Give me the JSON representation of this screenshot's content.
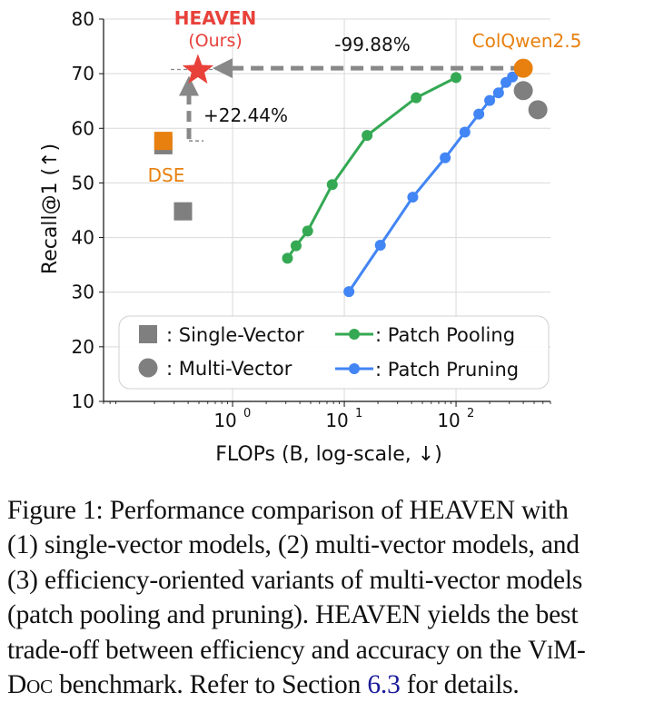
{
  "chart_data": {
    "type": "scatter",
    "title": "",
    "xlabel": "FLOPs (B, log-scale, ↓)",
    "ylabel": "Recall@1 (↑)",
    "xscale": "log",
    "xlim": [
      0.07,
      700
    ],
    "ylim": [
      10,
      80
    ],
    "yticks": [
      10,
      20,
      30,
      40,
      50,
      60,
      70,
      80
    ],
    "xticks": [
      {
        "value": 1,
        "base": "10",
        "exp": "0"
      },
      {
        "value": 10,
        "base": "10",
        "exp": "1"
      },
      {
        "value": 100,
        "base": "10",
        "exp": "2"
      }
    ],
    "grid": true,
    "legend_position": "bottom",
    "series": [
      {
        "name": "Patch Pooling",
        "marker": "circle",
        "line": true,
        "color": "#34a853",
        "x": [
          3.1,
          3.7,
          4.7,
          7.8,
          16,
          44,
          100
        ],
        "y": [
          36.2,
          38.5,
          41.2,
          49.7,
          58.7,
          65.6,
          69.3
        ]
      },
      {
        "name": "Patch Pruning",
        "marker": "circle",
        "line": true,
        "color": "#4285f4",
        "x": [
          11,
          21,
          41,
          80,
          120,
          160,
          200,
          240,
          280,
          320
        ],
        "y": [
          30.1,
          38.6,
          47.4,
          54.6,
          59.3,
          62.6,
          65.1,
          66.5,
          68.4,
          69.4
        ]
      },
      {
        "name": "Single-Vector",
        "marker": "square",
        "line": false,
        "color": "#7f7f7f",
        "x": [
          0.24,
          0.36
        ],
        "y": [
          56.9,
          44.8
        ]
      },
      {
        "name": "Multi-Vector",
        "marker": "circle",
        "line": false,
        "color": "#7f7f7f",
        "x": [
          400,
          540
        ],
        "y": [
          66.9,
          63.4
        ]
      }
    ],
    "highlights": [
      {
        "name": "DSE",
        "marker": "square",
        "color": "#e8800f",
        "x": 0.24,
        "y": 57.7
      },
      {
        "name": "ColQwen2.5",
        "marker": "circle",
        "color": "#e8800f",
        "x": 400,
        "y": 71.0
      },
      {
        "name": "HEAVEN",
        "marker": "star",
        "color": "#e8413a",
        "x": 0.49,
        "y": 70.6
      }
    ],
    "annotations": {
      "heaven": "HEAVEN",
      "ours": "(Ours)",
      "colqwen": "ColQwen2.5",
      "dse": "DSE",
      "flops_reduction": "-99.88%",
      "recall_gain": "+22.44%"
    },
    "legend": [
      {
        "label": ": Single-Vector"
      },
      {
        "label": ": Multi-Vector"
      },
      {
        "label": ": Patch Pooling"
      },
      {
        "label": ": Patch Pruning"
      }
    ]
  },
  "caption": {
    "lines": [
      {
        "text": "Figure 1:  Performance comparison of HEAVEN with"
      },
      {
        "text": "(1) single-vector models, (2) multi-vector models, and"
      },
      {
        "text": "(3) efficiency-oriented variants of multi-vector models"
      },
      {
        "text": "(patch pooling and pruning). HEAVEN yields the best"
      },
      {
        "text": "trade-off between efficiency and accuracy on the ",
        "sc": "ViM-"
      },
      {
        "sc": "Doc",
        "text": " benchmark. Refer to Section ",
        "link": "6.3",
        "tail": " for details."
      }
    ]
  },
  "colors": {
    "green": "#34a853",
    "blue": "#4285f4",
    "orange": "#e8800f",
    "grey": "#7f7f7f",
    "red": "#e8413a"
  }
}
